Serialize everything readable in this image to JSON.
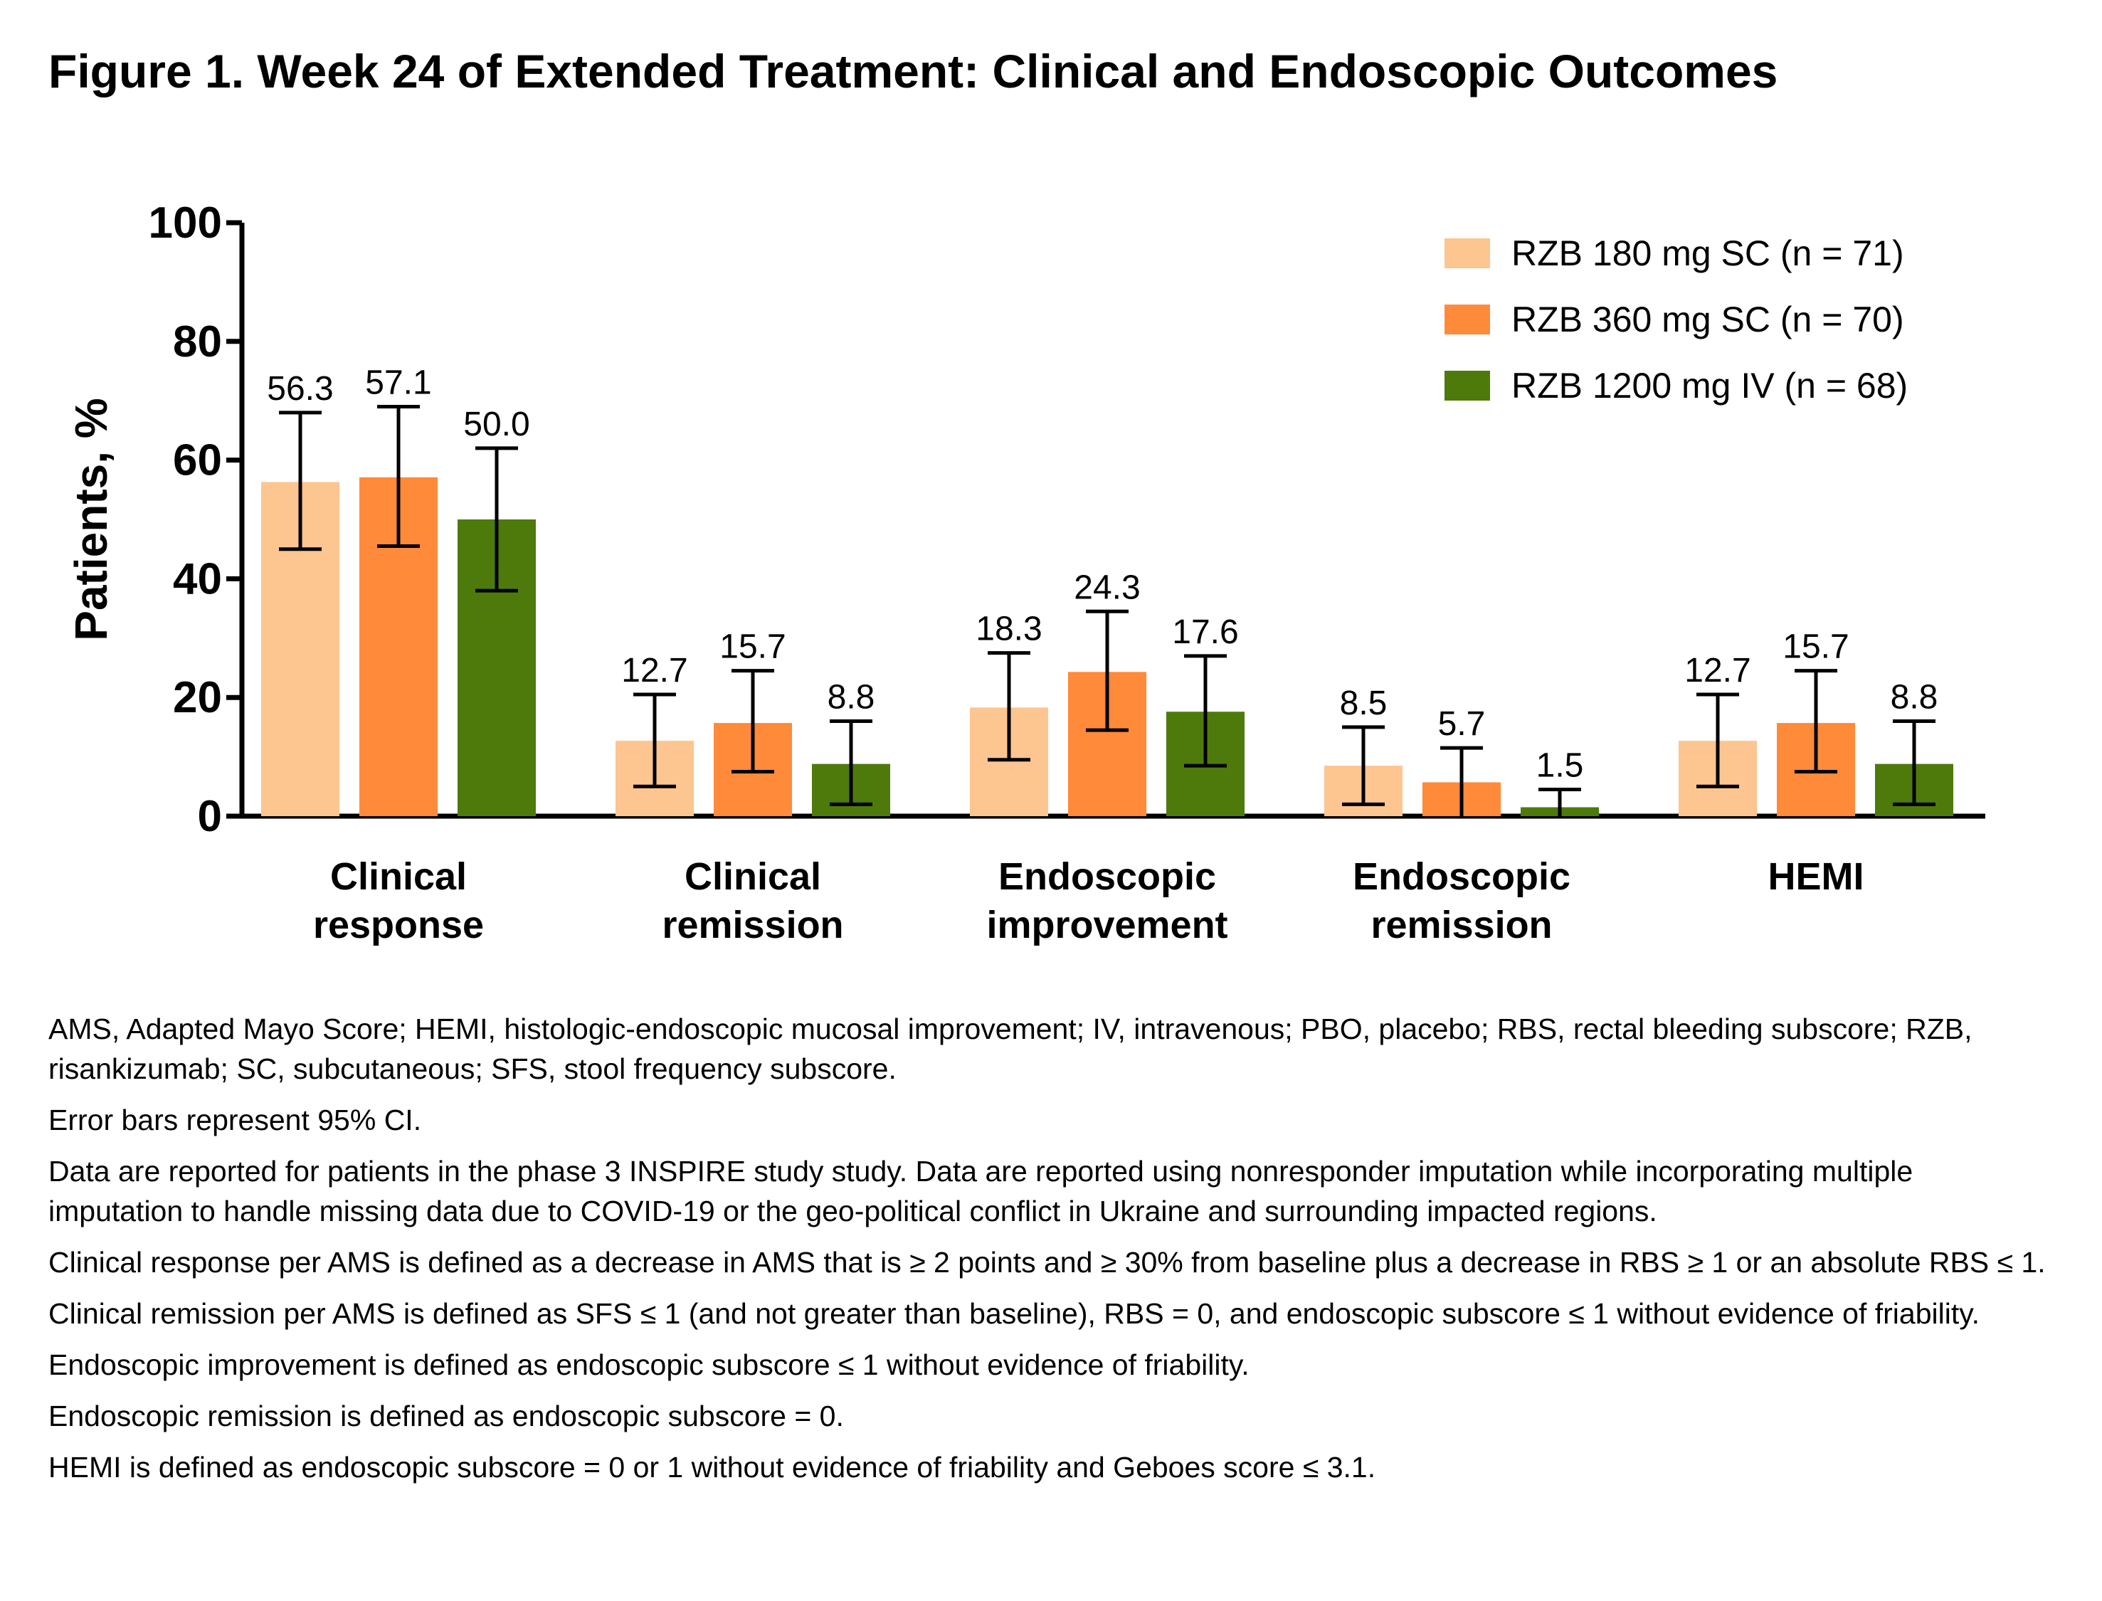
{
  "title": "Figure 1. Week 24 of Extended Treatment: Clinical and Endoscopic Outcomes",
  "chart_data": {
    "type": "bar",
    "ylabel": "Patients, %",
    "xlabel": "",
    "ylim": [
      0,
      100
    ],
    "yticks": [
      0,
      20,
      40,
      60,
      80,
      100
    ],
    "categories": [
      [
        "Clinical",
        "response"
      ],
      [
        "Clinical",
        "remission"
      ],
      [
        "Endoscopic",
        "improvement"
      ],
      [
        "Endoscopic",
        "remission"
      ],
      [
        "HEMI"
      ]
    ],
    "legend_position": "top-right",
    "series": [
      {
        "name": "RZB 180 mg SC (n = 71)",
        "color": "#FDC590",
        "values": [
          56.3,
          12.7,
          18.3,
          8.5,
          12.7
        ],
        "value_labels": [
          "56.3",
          "12.7",
          "18.3",
          "8.5",
          "12.7"
        ],
        "ci": [
          [
            45,
            68
          ],
          [
            5,
            20.5
          ],
          [
            9.5,
            27.5
          ],
          [
            2,
            15
          ],
          [
            5,
            20.5
          ]
        ]
      },
      {
        "name": "RZB 360 mg SC (n = 70)",
        "color": "#FF8A3A",
        "values": [
          57.1,
          15.7,
          24.3,
          5.7,
          15.7
        ],
        "value_labels": [
          "57.1",
          "15.7",
          "24.3",
          "5.7",
          "15.7"
        ],
        "ci": [
          [
            45.5,
            69
          ],
          [
            7.5,
            24.5
          ],
          [
            14.5,
            34.5
          ],
          [
            0,
            11.5
          ],
          [
            7.5,
            24.5
          ]
        ]
      },
      {
        "name": "RZB 1200 mg IV (n = 68)",
        "color": "#4E7A0C",
        "values": [
          50.0,
          8.8,
          17.6,
          1.5,
          8.8
        ],
        "value_labels": [
          "50.0",
          "8.8",
          "17.6",
          "1.5",
          "8.8"
        ],
        "ci": [
          [
            38,
            62
          ],
          [
            2,
            16
          ],
          [
            8.5,
            27
          ],
          [
            0,
            4.5
          ],
          [
            2,
            16
          ]
        ]
      }
    ]
  },
  "footnotes": [
    "AMS, Adapted Mayo Score; HEMI, histologic-endoscopic mucosal improvement; IV, intravenous; PBO, placebo; RBS, rectal bleeding subscore; RZB, risankizumab; SC, subcutaneous; SFS, stool frequency subscore.",
    "Error bars represent 95% CI.",
    "Data are reported for patients in the phase 3 INSPIRE study study. Data are reported using nonresponder imputation while incorporating multiple imputation to handle missing data due to COVID-19 or the geo-political conflict in Ukraine and surrounding impacted regions.",
    "Clinical response per AMS is defined as a decrease in AMS that is ≥ 2 points and ≥ 30% from baseline plus a decrease in RBS ≥ 1 or an absolute RBS ≤ 1.",
    "Clinical remission per AMS is defined as SFS ≤ 1 (and not greater than baseline), RBS = 0, and endoscopic subscore ≤ 1 without evidence of friability.",
    "Endoscopic improvement is defined as endoscopic subscore ≤ 1 without evidence of friability.",
    "Endoscopic remission is defined as endoscopic subscore = 0.",
    "HEMI is defined as endoscopic subscore = 0 or 1 without evidence of friability and Geboes score ≤ 3.1."
  ]
}
